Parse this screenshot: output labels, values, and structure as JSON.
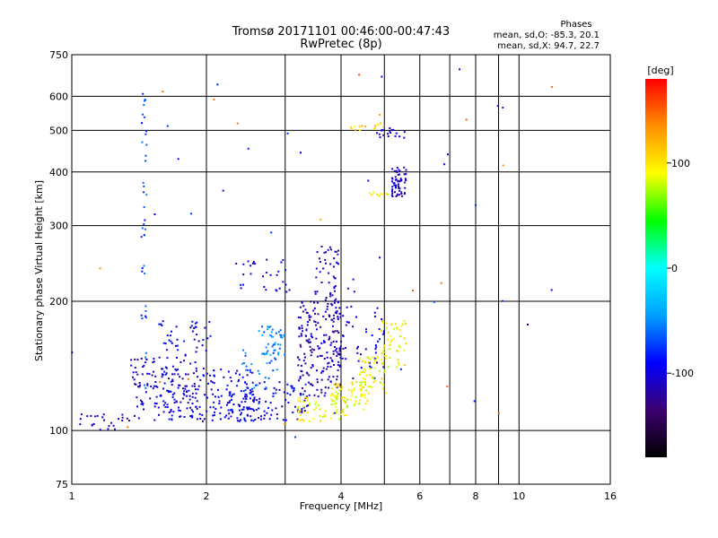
{
  "chart_data": {
    "type": "scatter",
    "title": "Tromsø 20171101 00:46:00-00:47:43",
    "subtitle": "RwPretec (8p)",
    "xlabel": "Frequency [MHz]",
    "ylabel": "Stationary phase Virtual Height [km]",
    "x_scale": "log",
    "y_scale": "log",
    "xlim": [
      1,
      16
    ],
    "ylim": [
      75,
      750
    ],
    "x_ticks": [
      1,
      2,
      4,
      6,
      8,
      10,
      16
    ],
    "x_tick_labels": [
      "1",
      "2",
      "4",
      "6",
      "8",
      "10",
      "16"
    ],
    "x_grid_extra": [
      3,
      5,
      7,
      9
    ],
    "y_ticks": [
      75,
      100,
      200,
      300,
      400,
      500,
      600,
      750
    ],
    "y_tick_labels": [
      "75",
      "100",
      "200",
      "300",
      "400",
      "500",
      "600",
      "750"
    ],
    "grid": true,
    "legend": {
      "title": "Phases",
      "lines": [
        "mean, sd,O: -85.3, 20.1",
        "mean, sd,X:  94.7, 22.7"
      ]
    },
    "colorbar": {
      "label": "[deg]",
      "range": [
        -180,
        180
      ],
      "ticks": [
        100,
        0,
        -100
      ],
      "tick_labels": [
        "100",
        "0",
        "-100"
      ],
      "colors": [
        "#000000",
        "#3c0070",
        "#0000ff",
        "#00a0ff",
        "#00ffff",
        "#00ff00",
        "#ffff00",
        "#ff9000",
        "#ff0000"
      ]
    },
    "series": [
      {
        "mode": "O",
        "clusters": [
          {
            "f": [
              1.02,
              1.35
            ],
            "h": [
              100,
              110
            ],
            "n": 25,
            "phase": -110
          },
          {
            "f": [
              1.35,
              1.9
            ],
            "h": [
              105,
              150
            ],
            "n": 120,
            "phase": -105
          },
          {
            "f": [
              1.6,
              2.6
            ],
            "h": [
              105,
              140
            ],
            "n": 160,
            "phase": -100
          },
          {
            "f": [
              2.2,
              3.4
            ],
            "h": [
              105,
              130
            ],
            "n": 110,
            "phase": -95
          },
          {
            "f": [
              1.55,
              2.05
            ],
            "h": [
              150,
              180
            ],
            "n": 40,
            "phase": -100
          },
          {
            "f": [
              2.6,
              3.0
            ],
            "h": [
              150,
              175
            ],
            "n": 45,
            "phase": -50
          },
          {
            "f": [
              2.4,
              2.9
            ],
            "h": [
              120,
              155
            ],
            "n": 30,
            "phase": -60
          },
          {
            "f": [
              3.2,
              4.0
            ],
            "h": [
              120,
              200
            ],
            "n": 180,
            "phase": -115
          },
          {
            "f": [
              3.5,
              3.95
            ],
            "h": [
              200,
              270
            ],
            "n": 40,
            "phase": -110
          },
          {
            "f": [
              3.75,
              4.3
            ],
            "h": [
              130,
              230
            ],
            "n": 50,
            "phase": -105
          },
          {
            "f": [
              4.3,
              5.0
            ],
            "h": [
              140,
              195
            ],
            "n": 30,
            "phase": -100
          },
          {
            "f": [
              5.2,
              5.6
            ],
            "h": [
              350,
              410
            ],
            "n": 60,
            "phase": -110
          },
          {
            "f": [
              4.7,
              5.6
            ],
            "h": [
              480,
              510
            ],
            "n": 20,
            "phase": -105
          },
          {
            "f": [
              2.3,
              3.1
            ],
            "h": [
              210,
              250
            ],
            "n": 30,
            "phase": -100
          },
          {
            "f": [
              1.43,
              1.47
            ],
            "h": [
              120,
              650
            ],
            "n": 40,
            "phase": -70
          },
          {
            "f": [
              1.0,
              12.5
            ],
            "h": [
              95,
              700
            ],
            "n": 35,
            "phase": -90
          }
        ]
      },
      {
        "mode": "X",
        "clusters": [
          {
            "f": [
              3.2,
              4.2
            ],
            "h": [
              105,
              120
            ],
            "n": 60,
            "phase": 90
          },
          {
            "f": [
              3.8,
              4.6
            ],
            "h": [
              112,
              130
            ],
            "n": 60,
            "phase": 90
          },
          {
            "f": [
              4.4,
              5.1
            ],
            "h": [
              120,
              150
            ],
            "n": 60,
            "phase": 92
          },
          {
            "f": [
              4.9,
              5.6
            ],
            "h": [
              140,
              180
            ],
            "n": 50,
            "phase": 95
          },
          {
            "f": [
              4.2,
              5.0
            ],
            "h": [
              500,
              520
            ],
            "n": 15,
            "phase": 110
          },
          {
            "f": [
              4.5,
              5.2
            ],
            "h": [
              350,
              360
            ],
            "n": 10,
            "phase": 95
          },
          {
            "f": [
              1.0,
              12.5
            ],
            "h": [
              100,
              700
            ],
            "n": 18,
            "phase": 140
          }
        ]
      }
    ]
  }
}
